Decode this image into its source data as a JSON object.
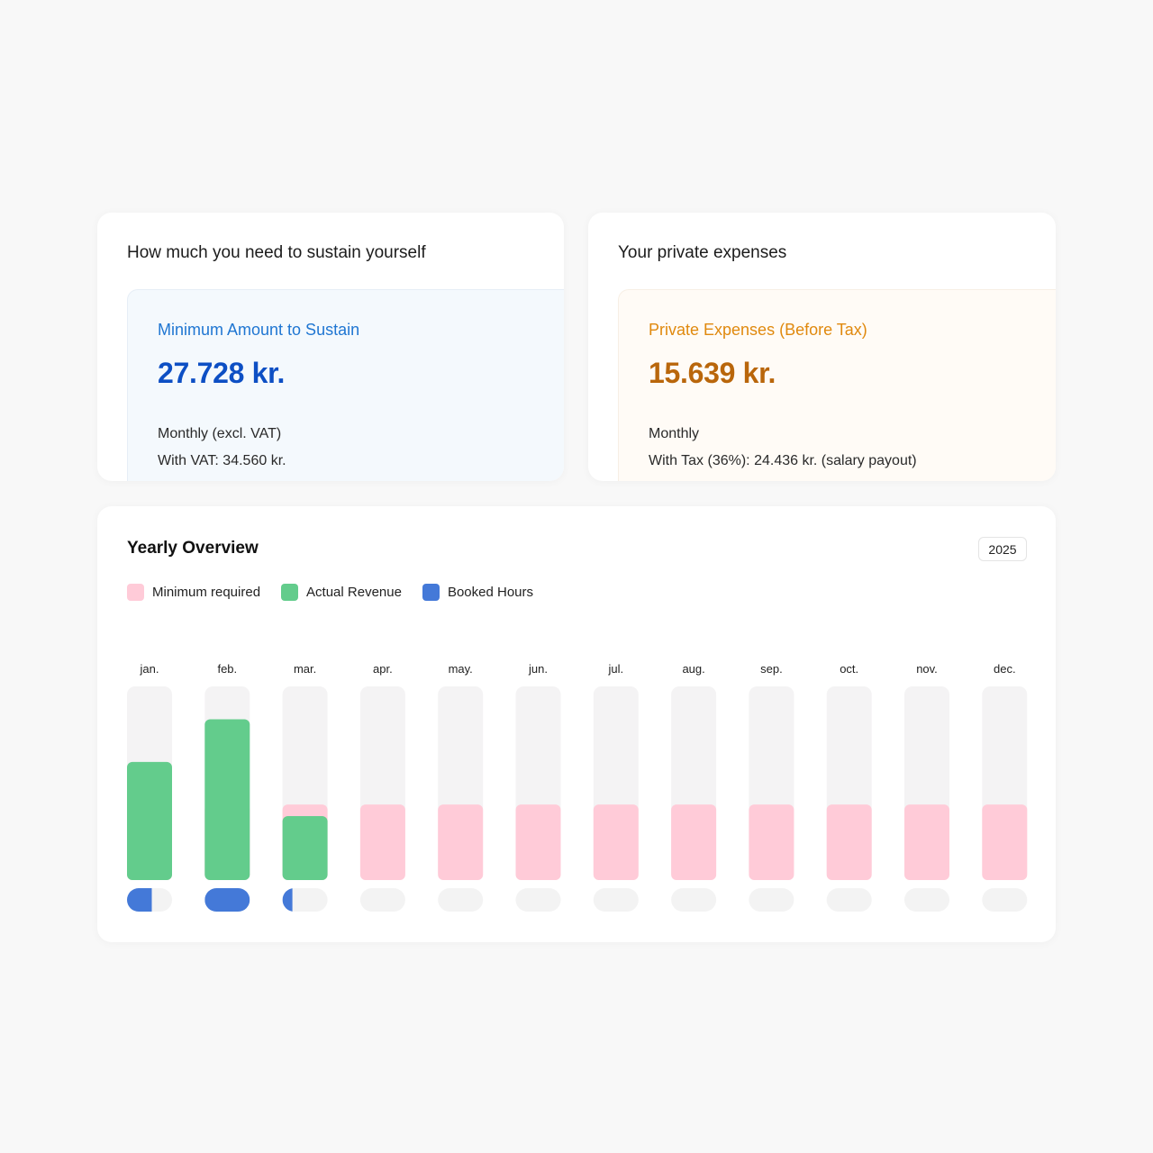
{
  "sustain_card": {
    "title": "How much you need to sustain yourself",
    "label": "Minimum Amount to Sustain",
    "value": "27.728 kr.",
    "line1": "Monthly (excl. VAT)",
    "line2": "With VAT: 34.560 kr.",
    "accent": "#1f76d2"
  },
  "private_card": {
    "title": "Your private expenses",
    "label": "Private Expenses (Before Tax)",
    "value": "15.639 kr.",
    "line1": "Monthly",
    "line2": "With Tax (36%): 24.436 kr. (salary payout)",
    "accent": "#e0890e"
  },
  "yearly": {
    "title": "Yearly Overview",
    "year": "2025",
    "legend": [
      {
        "label": "Minimum required",
        "color": "#ffcbd8"
      },
      {
        "label": "Actual Revenue",
        "color": "#63cc8c"
      },
      {
        "label": "Booked Hours",
        "color": "#4479d8"
      }
    ]
  },
  "chart_data": {
    "type": "bar",
    "categories": [
      "jan.",
      "feb.",
      "mar.",
      "apr.",
      "may.",
      "jun.",
      "jul.",
      "aug.",
      "sep.",
      "oct.",
      "nov.",
      "dec."
    ],
    "series": [
      {
        "name": "Minimum required",
        "values": [
          39,
          39,
          39,
          39,
          39,
          39,
          39,
          39,
          39,
          39,
          39,
          39
        ]
      },
      {
        "name": "Actual Revenue",
        "values": [
          61,
          83,
          33,
          0,
          0,
          0,
          0,
          0,
          0,
          0,
          0,
          0
        ]
      },
      {
        "name": "Booked Hours",
        "values": [
          0.55,
          1.0,
          0.22,
          0,
          0,
          0,
          0,
          0,
          0,
          0,
          0,
          0
        ]
      }
    ],
    "ylim": [
      0,
      100
    ],
    "colors": {
      "track": "#f4f3f4",
      "minimum": "#ffcbd8",
      "revenue": "#63cc8c",
      "hours": "#4479d8",
      "hours_track": "#f3f3f3"
    }
  }
}
